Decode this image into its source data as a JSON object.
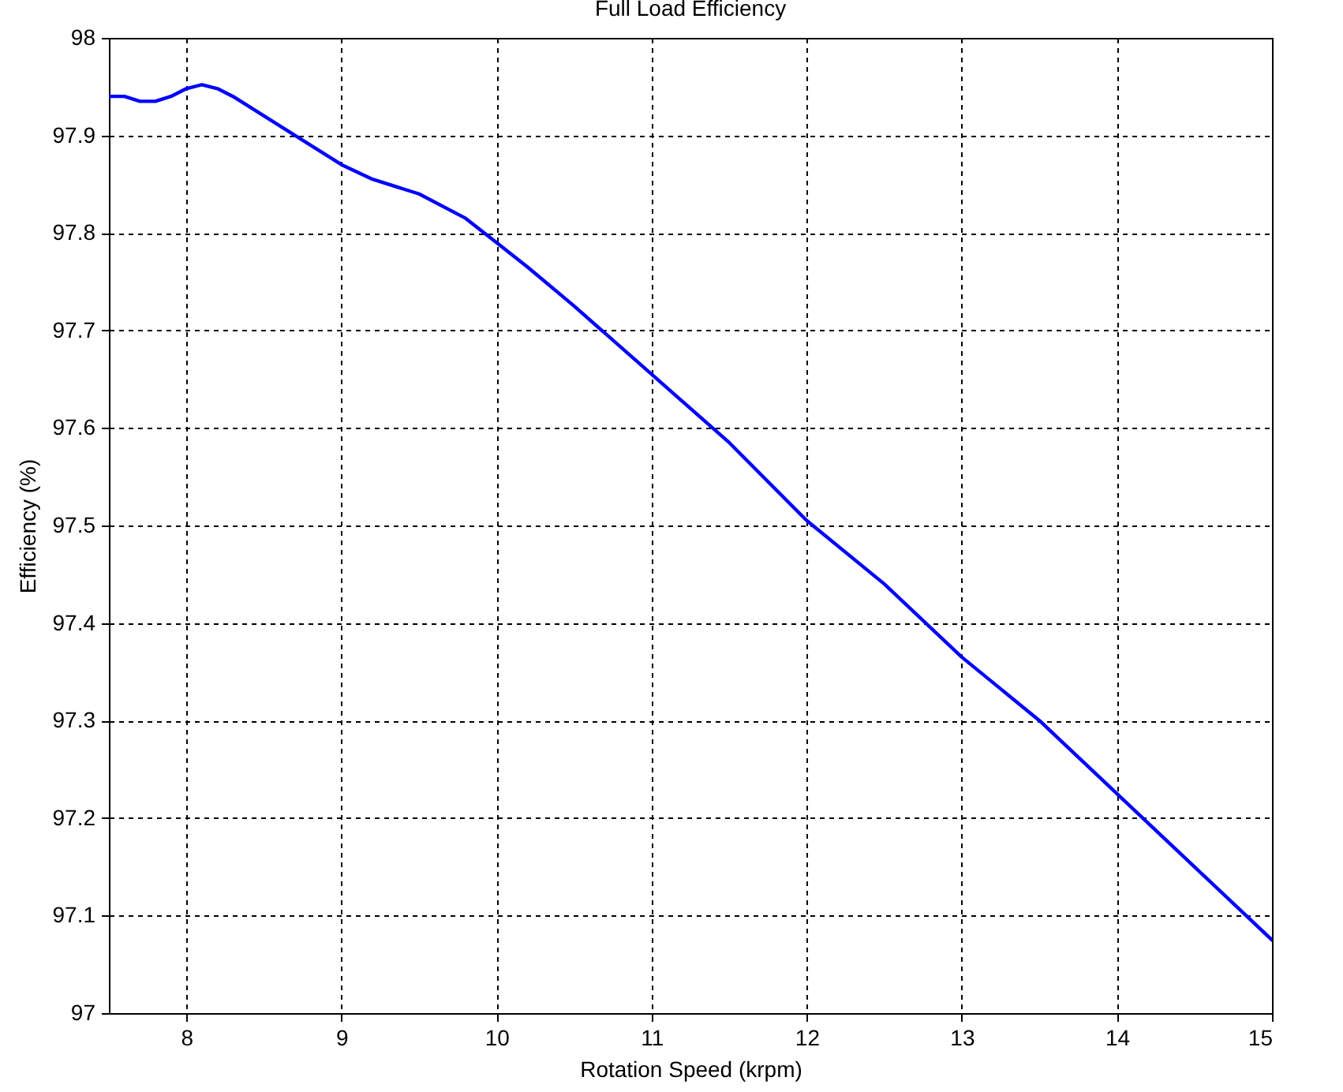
{
  "chart_data": {
    "type": "line",
    "title": "Full Load Efficiency",
    "xlabel": "Rotation Speed (krpm)",
    "ylabel": "Efficiency (%)",
    "x": [
      7.5,
      7.6,
      7.7,
      7.8,
      7.9,
      8.0,
      8.1,
      8.2,
      8.3,
      8.5,
      8.7,
      9.0,
      9.2,
      9.5,
      9.8,
      10.0,
      10.2,
      10.5,
      11.0,
      11.5,
      12.0,
      12.5,
      13.0,
      13.5,
      14.0,
      14.5,
      15.0
    ],
    "series": [
      {
        "color": "#0000ff",
        "values": [
          97.94,
          97.94,
          97.935,
          97.935,
          97.94,
          97.948,
          97.952,
          97.948,
          97.94,
          97.92,
          97.9,
          97.87,
          97.855,
          97.84,
          97.815,
          97.79,
          97.765,
          97.725,
          97.655,
          97.585,
          97.505,
          97.44,
          97.365,
          97.3,
          97.225,
          97.15,
          97.075
        ]
      }
    ],
    "xlim": [
      7.5,
      15
    ],
    "xticks": [
      8,
      9,
      10,
      11,
      12,
      13,
      14,
      15
    ],
    "ylim": [
      97,
      98
    ],
    "yticks": [
      97,
      97.1,
      97.2,
      97.3,
      97.4,
      97.5,
      97.6,
      97.7,
      97.8,
      97.9,
      98
    ],
    "grid": true,
    "line_style": "solid"
  }
}
